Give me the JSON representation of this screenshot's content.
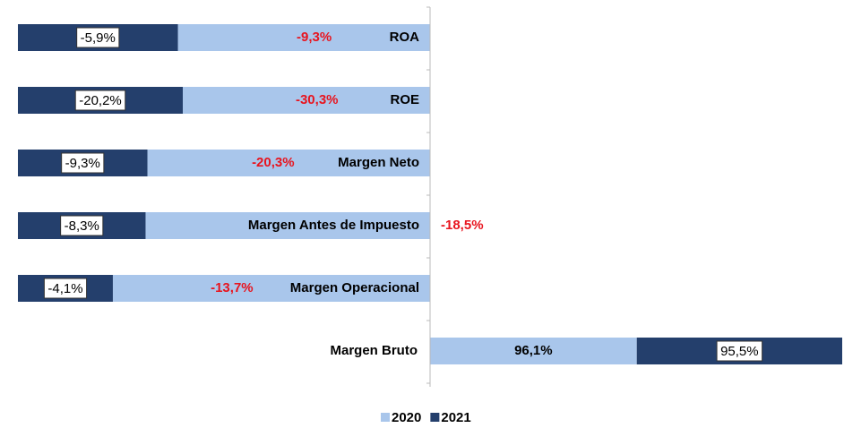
{
  "chart_data": {
    "type": "bar",
    "orientation": "horizontal",
    "stacked": "percent",
    "categories": [
      "ROA",
      "ROE",
      "Margen Neto",
      "Margen Antes de Impuesto",
      "Margen Operacional",
      "Margen Bruto"
    ],
    "series": [
      {
        "name": "2020",
        "color": "#a9c6eb",
        "values": [
          -9.3,
          -30.3,
          -20.3,
          -18.5,
          -13.7,
          96.1
        ],
        "value_labels": [
          "-9,3%",
          "-30,3%",
          "-20,3%",
          "-18,5%",
          "-13,7%",
          "96,1%"
        ]
      },
      {
        "name": "2021",
        "color": "#243f6c",
        "values": [
          -5.9,
          -20.2,
          -9.3,
          -8.3,
          -4.1,
          95.5
        ],
        "value_labels": [
          "-5,9%",
          "-20,2%",
          "-9,3%",
          "-8,3%",
          "-4,1%",
          "95,5%"
        ]
      }
    ],
    "legend": "bottom"
  }
}
